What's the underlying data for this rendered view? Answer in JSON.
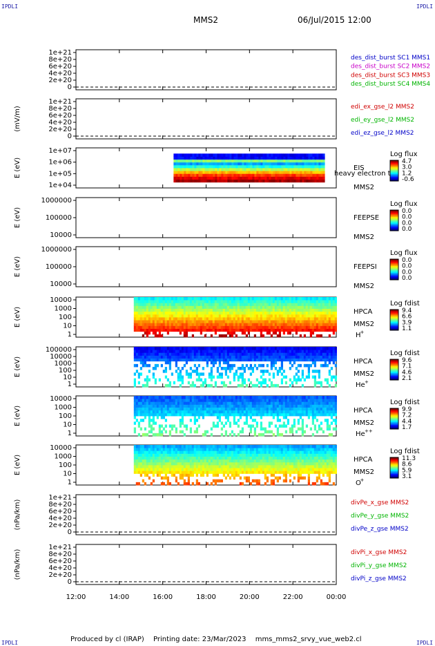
{
  "corner_label": "IPDLI",
  "header": {
    "spacecraft": "MMS2",
    "datetime": "06/Jul/2015 12:00"
  },
  "footer": {
    "produced_by": "Produced by cl (IRAP)",
    "printing_date": "Printing date: 23/Mar/2023",
    "script": "mms_mms2_srvy_vue_web2.cl"
  },
  "chart_data": [
    {
      "type": "line",
      "ylabel": "",
      "ytick_labels": [
        "1e+21",
        "8e+20",
        "6e+20",
        "4e+20",
        "2e+20",
        "0"
      ],
      "ylim": [
        0,
        1e+21
      ],
      "dashed_zero": true,
      "legend": [
        {
          "text": "des_dist_burst SC1 MMS1",
          "color": "#0000c8"
        },
        {
          "text": "des_dist_burst SC2 MMS2",
          "color": "#c800c8"
        },
        {
          "text": "des_dist_burst SC3 MMS3",
          "color": "#d00000"
        },
        {
          "text": "des_dist_burst SC4 MMS4",
          "color": "#00b400"
        }
      ]
    },
    {
      "type": "line",
      "ylabel": "(mV/m)",
      "ytick_labels": [
        "1e+21",
        "8e+20",
        "6e+20",
        "4e+20",
        "2e+20",
        "0"
      ],
      "ylim": [
        0,
        1e+21
      ],
      "dashed_zero": true,
      "legend": [
        {
          "text": "edi_ex_gse_l2 MMS2",
          "color": "#d00000"
        },
        {
          "text": "edi_ey_gse_l2 MMS2",
          "color": "#00b400"
        },
        {
          "text": "edi_ez_gse_l2 MMS2",
          "color": "#0000c8"
        }
      ]
    },
    {
      "type": "heatmap",
      "ylabel": "E (eV)",
      "ytick_labels": [
        "1e+07",
        "1e+06",
        "1e+05",
        "1e+04"
      ],
      "log_scale": true,
      "instrument": "EIS",
      "overlay": "heavy electron tof",
      "sc": "MMS2",
      "colorbar": {
        "title": "Log flux",
        "ticks": [
          "4.7",
          "3.0",
          "1.2",
          "-0.6"
        ]
      },
      "coverage": {
        "start": "16:30",
        "end": "23:30"
      }
    },
    {
      "type": "heatmap",
      "ylabel": "E (eV)",
      "ytick_labels": [
        "1000000",
        "100000",
        "10000"
      ],
      "log_scale": true,
      "instrument": "FEEPSE",
      "sc": "MMS2",
      "colorbar": {
        "title": "Log flux",
        "ticks": [
          "0.0",
          "0.0",
          "0.0",
          "0.0"
        ]
      }
    },
    {
      "type": "heatmap",
      "ylabel": "E (eV)",
      "ytick_labels": [
        "1000000",
        "100000",
        "10000"
      ],
      "log_scale": true,
      "instrument": "FEEPSI",
      "sc": "MMS2",
      "colorbar": {
        "title": "Log flux",
        "ticks": [
          "0.0",
          "0.0",
          "0.0",
          "0.0"
        ]
      }
    },
    {
      "type": "heatmap",
      "ylabel": "E (eV)",
      "ytick_labels": [
        "10000",
        "1000",
        "100",
        "10",
        "1"
      ],
      "log_scale": true,
      "instrument": "HPCA",
      "sc": "MMS2",
      "species": "H",
      "species_sup": "+",
      "colorbar": {
        "title": "Log fdist",
        "ticks": [
          "9.4",
          "6.6",
          "3.9",
          "1.1"
        ]
      },
      "coverage": {
        "start": "14:40",
        "end": "24:00"
      }
    },
    {
      "type": "heatmap",
      "ylabel": "E (eV)",
      "ytick_labels": [
        "100000",
        "10000",
        "1000",
        "100",
        "10",
        "1"
      ],
      "log_scale": true,
      "instrument": "HPCA",
      "sc": "MMS2",
      "species": "He",
      "species_sup": "+",
      "colorbar": {
        "title": "Log fdist",
        "ticks": [
          "9.6",
          "7.1",
          "4.6",
          "2.1"
        ]
      },
      "coverage": {
        "start": "14:40",
        "end": "24:00"
      }
    },
    {
      "type": "heatmap",
      "ylabel": "E (eV)",
      "ytick_labels": [
        "10000",
        "1000",
        "100",
        "10",
        "1"
      ],
      "log_scale": true,
      "instrument": "HPCA",
      "sc": "MMS2",
      "species": "He",
      "species_sup": "++",
      "colorbar": {
        "title": "Log fdist",
        "ticks": [
          "9.9",
          "7.2",
          "4.4",
          "1.7"
        ]
      },
      "coverage": {
        "start": "14:40",
        "end": "24:00"
      }
    },
    {
      "type": "heatmap",
      "ylabel": "E (eV)",
      "ytick_labels": [
        "10000",
        "1000",
        "100",
        "10",
        "1"
      ],
      "log_scale": true,
      "instrument": "HPCA",
      "sc": "MMS2",
      "species": "O",
      "species_sup": "+",
      "colorbar": {
        "title": "Log fdist",
        "ticks": [
          "11.3",
          "8.6",
          "5.9",
          "3.1"
        ]
      },
      "coverage": {
        "start": "14:40",
        "end": "24:00"
      }
    },
    {
      "type": "line",
      "ylabel": "(nPa/km)",
      "ytick_labels": [
        "1e+21",
        "8e+20",
        "6e+20",
        "4e+20",
        "2e+20",
        "0"
      ],
      "ylim": [
        0,
        1e+21
      ],
      "dashed_zero": true,
      "legend": [
        {
          "text": "divPe_x_gse MMS2",
          "color": "#d00000"
        },
        {
          "text": "divPe_y_gse MMS2",
          "color": "#00b400"
        },
        {
          "text": "divPe_z_gse MMS2",
          "color": "#0000c8"
        }
      ]
    },
    {
      "type": "line",
      "ylabel": "(nPa/km)",
      "ytick_labels": [
        "1e+21",
        "8e+20",
        "6e+20",
        "4e+20",
        "2e+20",
        "0"
      ],
      "ylim": [
        0,
        1e+21
      ],
      "dashed_zero": true,
      "legend": [
        {
          "text": "divPi_x_gse MMS2",
          "color": "#d00000"
        },
        {
          "text": "divPi_y_gse MMS2",
          "color": "#00b400"
        },
        {
          "text": "divPi_z_gse MMS2",
          "color": "#0000c8"
        }
      ]
    }
  ],
  "time_axis": {
    "ticks": [
      "12:00",
      "14:00",
      "16:00",
      "18:00",
      "20:00",
      "22:00",
      "00:00"
    ]
  }
}
